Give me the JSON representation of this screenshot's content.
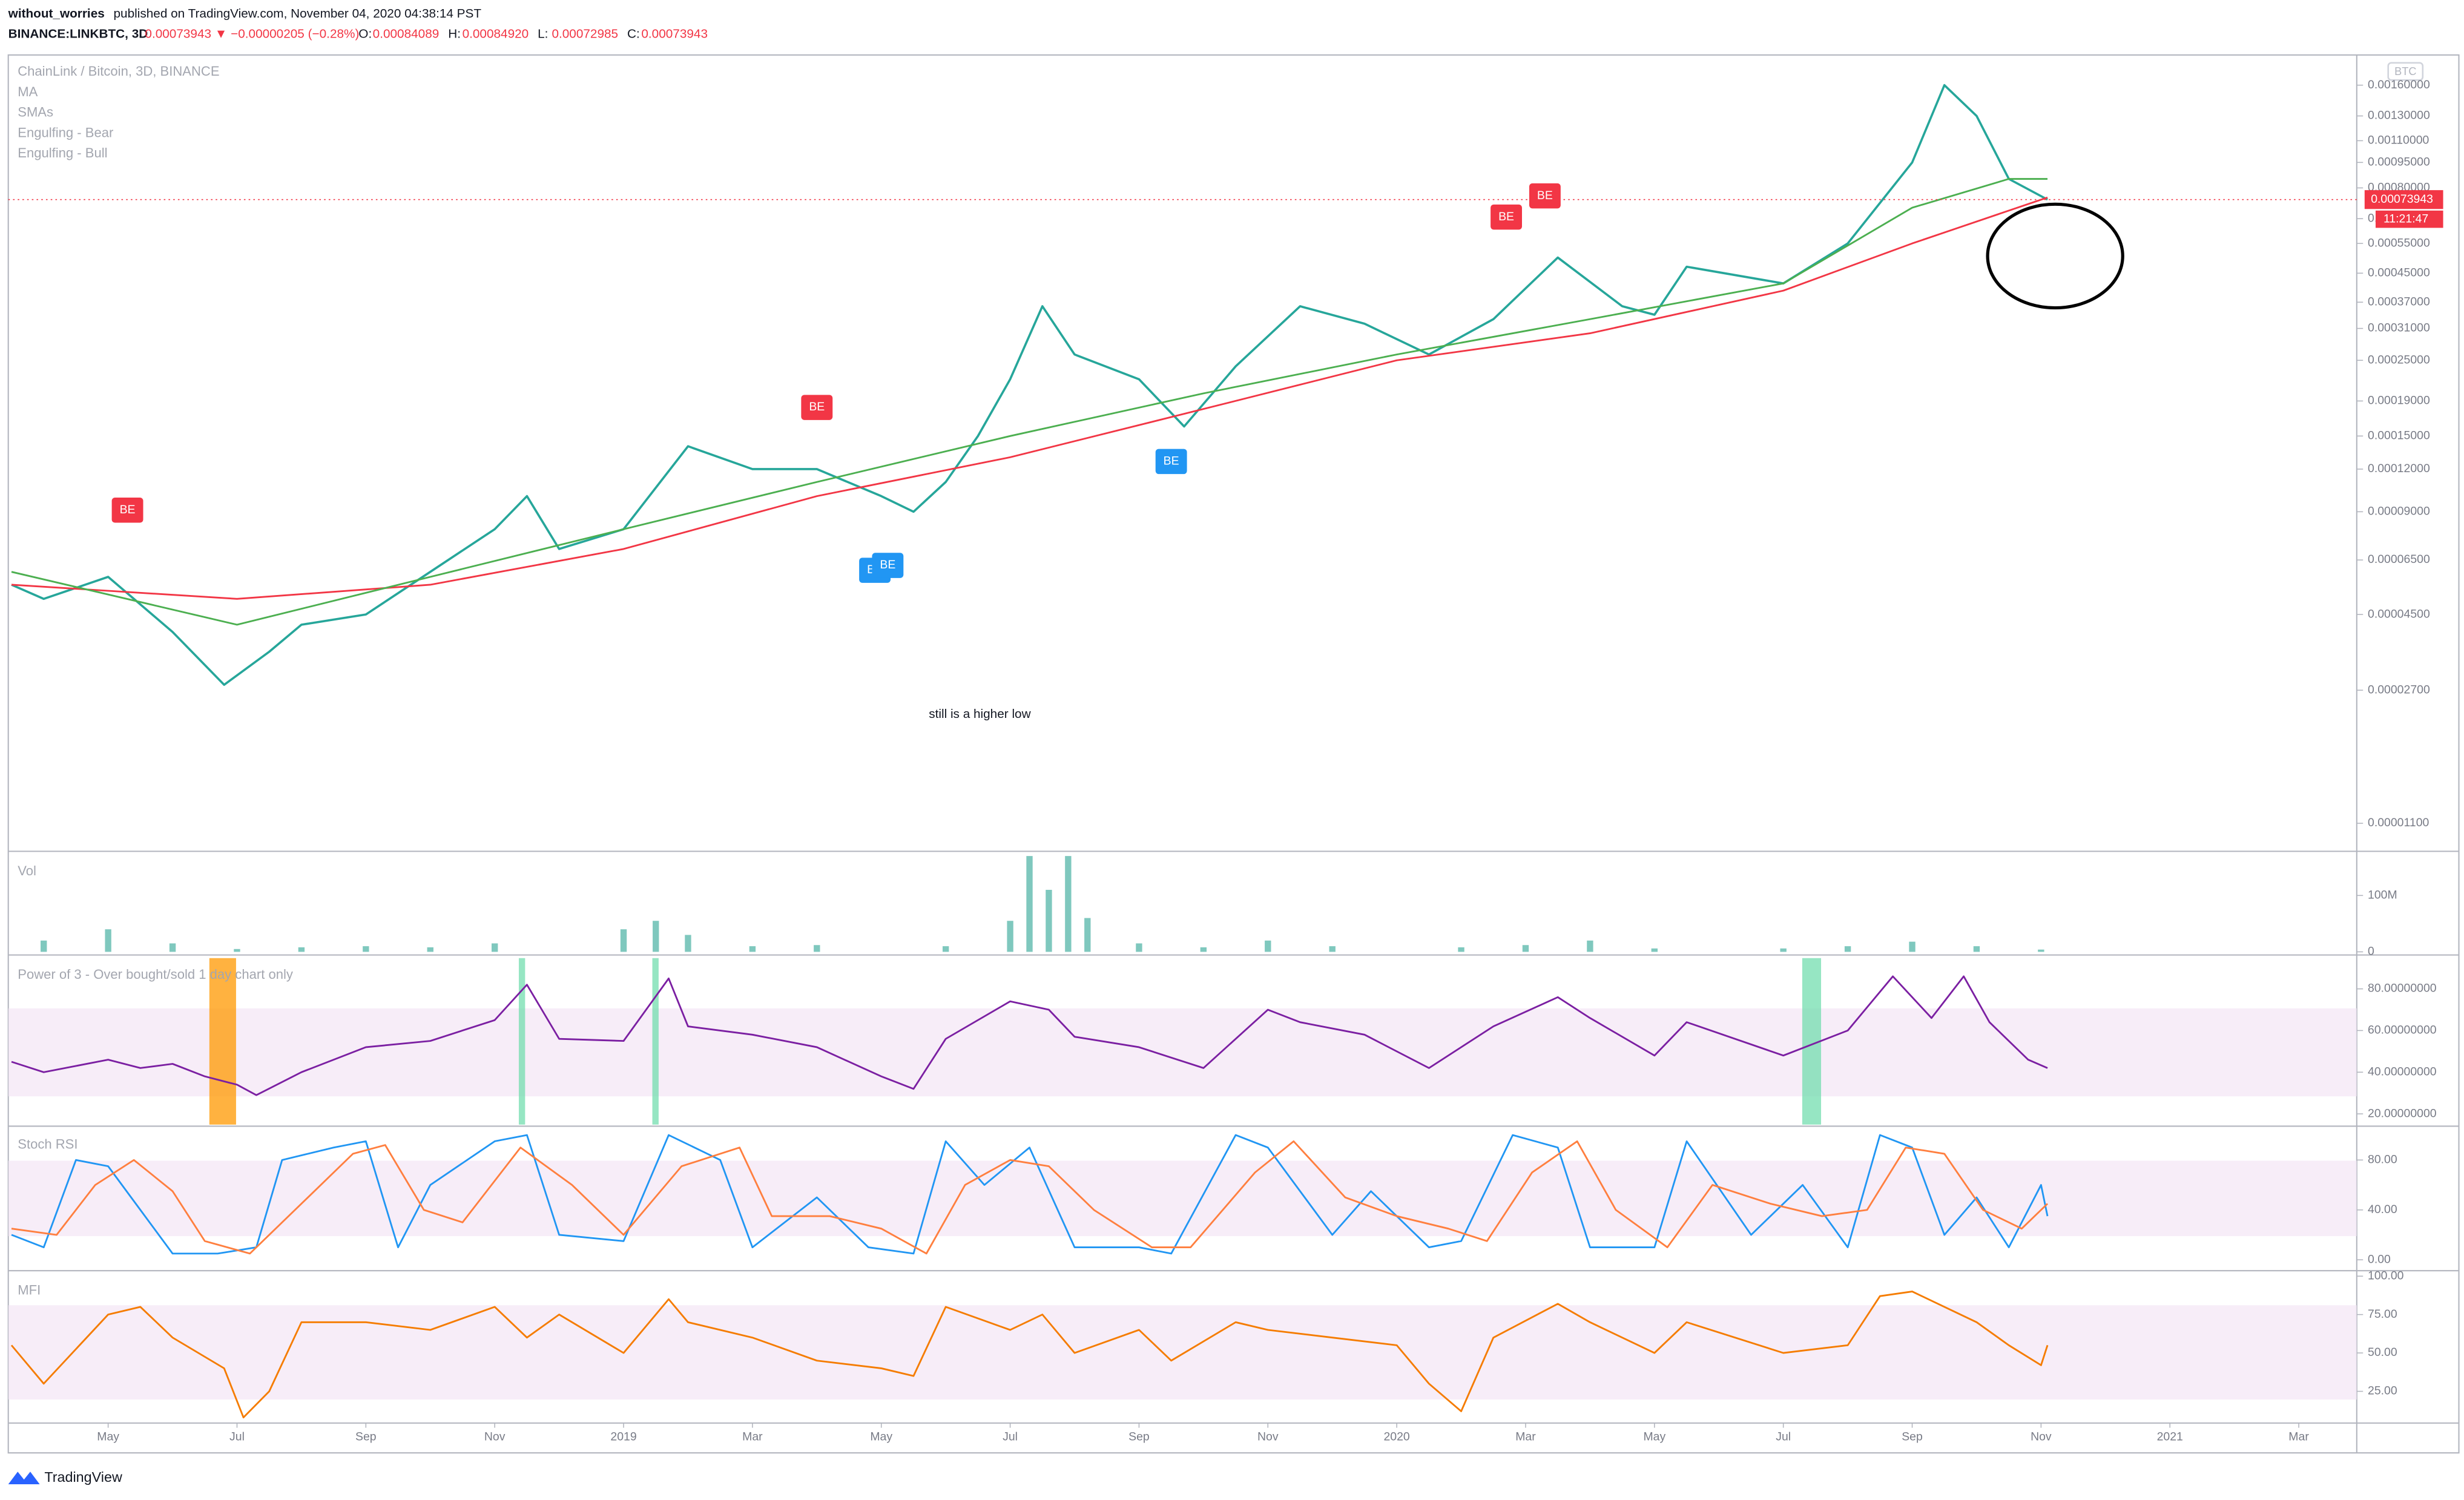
{
  "header": {
    "publisher": "without_worries",
    "published": "published on TradingView.com, November 04, 2020 04:38:14 PST",
    "symbol": "BINANCE:LINKBTC, 3D",
    "quote": "0.00073943 ▼ −0.00000205 (−0.28%)",
    "ohlc": [
      {
        "key": "O:",
        "value": "0.00084089"
      },
      {
        "key": "H:",
        "value": "0.00084920"
      },
      {
        "key": "L:",
        "value": "0.00072985"
      },
      {
        "key": "C:",
        "value": "0.00073943"
      }
    ]
  },
  "legend": [
    "ChainLink / Bitcoin, 3D, BINANCE",
    "MA",
    "SMAs",
    "Engulfing - Bear",
    "Engulfing - Bull"
  ],
  "annotation": "still is a higher low",
  "brand": "TradingView",
  "chart_data": [
    {
      "type": "line",
      "log_scale": true,
      "unit": "BTC",
      "xlim": [
        2.45,
        38.9
      ],
      "ylim": [
        9.5e-06,
        0.0019
      ],
      "yticks": [
        {
          "value": 0.0016,
          "label": "0.00160000"
        },
        {
          "value": 0.0013,
          "label": "0.00130000"
        },
        {
          "value": 0.0011,
          "label": "0.00110000"
        },
        {
          "value": 0.00095,
          "label": "0.00095000"
        },
        {
          "value": 0.0008,
          "label": "0.00080000"
        },
        {
          "value": 0.00065,
          "label": "0.00065000"
        },
        {
          "value": 0.00055,
          "label": "0.00055000"
        },
        {
          "value": 0.00045,
          "label": "0.00045000"
        },
        {
          "value": 0.00037,
          "label": "0.00037000"
        },
        {
          "value": 0.00031,
          "label": "0.00031000"
        },
        {
          "value": 0.00025,
          "label": "0.00025000"
        },
        {
          "value": 0.00019,
          "label": "0.00019000"
        },
        {
          "value": 0.00015,
          "label": "0.00015000"
        },
        {
          "value": 0.00012,
          "label": "0.00012000"
        },
        {
          "value": 9e-05,
          "label": "0.00009000"
        },
        {
          "value": 6.5e-05,
          "label": "0.00006500"
        },
        {
          "value": 4.5e-05,
          "label": "0.00004500"
        },
        {
          "value": 2.7e-05,
          "label": "0.00002700"
        },
        {
          "value": 1.1e-05,
          "label": "0.00001100"
        }
      ],
      "last_price": 0.00073943,
      "countdown": "11:21:47",
      "series": [
        {
          "name": "LINKBTC",
          "color": "#26a69a",
          "x": [
            2.5,
            3,
            4,
            5,
            5.8,
            6.5,
            7,
            8,
            9,
            10,
            10.5,
            11,
            12,
            13,
            14,
            15,
            16,
            16.5,
            17,
            17.5,
            18,
            18.5,
            19,
            20,
            20.7,
            21.5,
            22.5,
            23.5,
            24.5,
            25.5,
            26.5,
            27.5,
            28,
            28.5,
            30,
            31,
            32,
            32.5,
            33,
            33.5,
            34.1
          ],
          "values": [
            5.5e-05,
            5e-05,
            5.8e-05,
            4e-05,
            2.8e-05,
            3.5e-05,
            4.2e-05,
            4.5e-05,
            6e-05,
            8e-05,
            0.0001,
            7e-05,
            8e-05,
            0.00014,
            0.00012,
            0.00012,
            0.0001,
            9e-05,
            0.00011,
            0.00015,
            0.00022,
            0.00036,
            0.00026,
            0.00022,
            0.00016,
            0.00024,
            0.00036,
            0.00032,
            0.00026,
            0.00033,
            0.0005,
            0.00036,
            0.00034,
            0.00047,
            0.00042,
            0.00055,
            0.00095,
            0.0016,
            0.0013,
            0.00085,
            0.00073943
          ]
        },
        {
          "name": "SMA slow",
          "color": "#f23645",
          "x": [
            2.5,
            6,
            9,
            12,
            15,
            18,
            21,
            24,
            27,
            30,
            32,
            34.1
          ],
          "values": [
            5.5e-05,
            5e-05,
            5.5e-05,
            7e-05,
            0.0001,
            0.00013,
            0.00018,
            0.00025,
            0.0003,
            0.0004,
            0.00055,
            0.00075
          ]
        },
        {
          "name": "SMA mid",
          "color": "#4caf50",
          "x": [
            2.5,
            6,
            9,
            12,
            15,
            18,
            21,
            24,
            27,
            30,
            32,
            33.5,
            34.1
          ],
          "values": [
            6e-05,
            4.2e-05,
            5.8e-05,
            8e-05,
            0.00011,
            0.00015,
            0.0002,
            0.00026,
            0.00033,
            0.00042,
            0.0007,
            0.00085,
            0.00085
          ]
        }
      ],
      "markers": [
        {
          "label": "BE",
          "color": "#f23645",
          "x": 4.3,
          "y": 9e-05
        },
        {
          "label": "BE",
          "color": "#f23645",
          "x": 15.0,
          "y": 0.00018
        },
        {
          "label": "BE",
          "color": "#f23645",
          "x": 25.7,
          "y": 0.00065
        },
        {
          "label": "BE",
          "color": "#f23645",
          "x": 26.3,
          "y": 0.00075
        },
        {
          "label": "BE",
          "color": "#2196f3",
          "x": 15.9,
          "y": 6e-05
        },
        {
          "label": "BE",
          "color": "#2196f3",
          "x": 16.1,
          "y": 6.2e-05
        },
        {
          "label": "BE",
          "color": "#2196f3",
          "x": 20.5,
          "y": 0.000125
        }
      ]
    },
    {
      "type": "bar",
      "title": "Vol",
      "xlim": [
        2.45,
        38.9
      ],
      "ylim": [
        0,
        170000000
      ],
      "yticks": [
        {
          "value": 100000000,
          "label": "100M"
        },
        0
      ],
      "series": [
        {
          "name": "Volume",
          "color": "#7fc8be",
          "x": [
            3,
            4,
            5,
            6,
            7,
            8,
            9,
            10,
            12,
            12.5,
            13,
            14,
            15,
            17,
            18,
            18.3,
            18.6,
            18.9,
            19.2,
            20,
            21,
            22,
            23,
            25,
            26,
            27,
            28,
            30,
            31,
            32,
            33,
            34
          ],
          "values": [
            20000000,
            40000000,
            15000000,
            5000000,
            8000000,
            10000000,
            8000000,
            15000000,
            40000000,
            55000000,
            30000000,
            10000000,
            12000000,
            10000000,
            55000000,
            170000000,
            110000000,
            170000000,
            60000000,
            15000000,
            8000000,
            20000000,
            10000000,
            8000000,
            12000000,
            20000000,
            6000000,
            6000000,
            10000000,
            18000000,
            10000000,
            4000000
          ]
        }
      ]
    },
    {
      "type": "line",
      "title": "Power of 3 - Over bought/sold 1 day chart only",
      "xlim": [
        2.45,
        38.9
      ],
      "ylim": [
        15.6,
        94
      ],
      "yticks": [
        {
          "value": 80,
          "label": "80.00000000"
        },
        {
          "value": 60,
          "label": "60.00000000"
        },
        {
          "value": 40,
          "label": "40.00000000"
        },
        {
          "value": 20,
          "label": "20.00000000"
        }
      ],
      "series": [
        {
          "name": "Power of 3",
          "color": "#7b1fa2",
          "x": [
            2.5,
            3,
            4,
            4.5,
            5,
            5.5,
            6,
            6.3,
            7,
            8,
            9,
            10,
            10.5,
            11,
            12,
            12.7,
            13,
            14,
            15,
            16,
            16.5,
            17,
            18,
            18.6,
            19,
            20,
            21,
            22,
            22.5,
            23.5,
            24.5,
            25.5,
            26.5,
            27,
            28,
            28.5,
            30,
            31,
            31.7,
            32.3,
            32.8,
            33.2,
            33.8,
            34.1
          ],
          "values": [
            45,
            40,
            46,
            42,
            44,
            38,
            34,
            29,
            40,
            52,
            55,
            65,
            82,
            56,
            55,
            85,
            62,
            58,
            52,
            38,
            32,
            56,
            74,
            70,
            57,
            52,
            42,
            70,
            64,
            58,
            42,
            62,
            76,
            66,
            48,
            64,
            48,
            60,
            86,
            66,
            86,
            64,
            46,
            42
          ]
        }
      ]
    },
    {
      "type": "line",
      "title": "Stoch RSI",
      "xlim": [
        2.45,
        38.9
      ],
      "ylim": [
        -6.2,
        104.6
      ],
      "yticks": [
        {
          "value": 80,
          "label": "80.00"
        },
        {
          "value": 40,
          "label": "40.00"
        },
        {
          "value": 0,
          "label": "0.00"
        }
      ],
      "series": [
        {
          "name": "K",
          "color": "#2196f3",
          "x": [
            2.5,
            3,
            3.5,
            4,
            4.5,
            5,
            5.7,
            6.3,
            6.7,
            7.5,
            8,
            8.5,
            9,
            10,
            10.5,
            11,
            12,
            12.7,
            13.5,
            14,
            15,
            15.8,
            16.5,
            17,
            17.6,
            18.3,
            19,
            20,
            20.5,
            21.5,
            22,
            23,
            23.6,
            24.5,
            25,
            25.8,
            26.5,
            27,
            28,
            28.5,
            29.5,
            30.3,
            31,
            31.5,
            32,
            32.5,
            33,
            33.5,
            34,
            34.1
          ],
          "values": [
            20,
            10,
            80,
            75,
            40,
            5,
            5,
            10,
            80,
            90,
            95,
            10,
            60,
            95,
            100,
            20,
            15,
            100,
            80,
            10,
            50,
            10,
            5,
            95,
            60,
            90,
            10,
            10,
            5,
            100,
            90,
            20,
            55,
            10,
            15,
            100,
            90,
            10,
            10,
            95,
            20,
            60,
            10,
            100,
            90,
            20,
            50,
            10,
            60,
            35
          ]
        },
        {
          "name": "D",
          "color": "#ff7f3f",
          "x": [
            2.5,
            3.2,
            3.8,
            4.4,
            5,
            5.5,
            6.2,
            6.9,
            7.8,
            8.3,
            8.9,
            9.5,
            10.4,
            11.2,
            12,
            12.9,
            13.8,
            14.3,
            15.2,
            16,
            16.7,
            17.3,
            18,
            18.6,
            19.3,
            20.2,
            20.8,
            21.8,
            22.4,
            23.2,
            24,
            24.8,
            25.4,
            26.1,
            26.8,
            27.4,
            28.2,
            28.9,
            29.8,
            30.6,
            31.3,
            31.9,
            32.5,
            33.1,
            33.7,
            34.1
          ],
          "values": [
            25,
            20,
            60,
            80,
            55,
            15,
            5,
            40,
            85,
            92,
            40,
            30,
            90,
            60,
            20,
            75,
            90,
            35,
            35,
            25,
            5,
            60,
            80,
            75,
            40,
            10,
            10,
            70,
            95,
            50,
            35,
            25,
            15,
            70,
            95,
            40,
            10,
            60,
            45,
            35,
            40,
            90,
            85,
            40,
            25,
            45
          ]
        }
      ]
    },
    {
      "type": "line",
      "title": "MFI",
      "xlim": [
        2.45,
        38.9
      ],
      "ylim": [
        6.4,
        100.5
      ],
      "yticks": [
        {
          "value": 100,
          "label": "100.00"
        },
        {
          "value": 75,
          "label": "75.00"
        },
        {
          "value": 50,
          "label": "50.00"
        },
        {
          "value": 25,
          "label": "25.00"
        }
      ],
      "xticks": [
        {
          "value": 4,
          "label": "May"
        },
        {
          "value": 6,
          "label": "Jul"
        },
        {
          "value": 8,
          "label": "Sep"
        },
        {
          "value": 10,
          "label": "Nov"
        },
        {
          "value": 12,
          "label": "2019"
        },
        {
          "value": 14,
          "label": "Mar"
        },
        {
          "value": 16,
          "label": "May"
        },
        {
          "value": 18,
          "label": "Jul"
        },
        {
          "value": 20,
          "label": "Sep"
        },
        {
          "value": 22,
          "label": "Nov"
        },
        {
          "value": 24,
          "label": "2020"
        },
        {
          "value": 26,
          "label": "Mar"
        },
        {
          "value": 28,
          "label": "May"
        },
        {
          "value": 30,
          "label": "Jul"
        },
        {
          "value": 32,
          "label": "Sep"
        },
        {
          "value": 34,
          "label": "Nov"
        },
        {
          "value": 36,
          "label": "2021"
        },
        {
          "value": 38,
          "label": "Mar"
        }
      ],
      "series": [
        {
          "name": "MFI",
          "color": "#f57c00",
          "x": [
            2.5,
            3,
            4,
            4.5,
            5,
            5.8,
            6.1,
            6.5,
            7,
            8,
            9,
            10,
            10.5,
            11,
            12,
            12.7,
            13,
            14,
            15,
            16,
            16.5,
            17,
            18,
            18.5,
            19,
            20,
            20.5,
            21.5,
            22,
            23,
            24,
            24.5,
            25,
            25.5,
            26.5,
            27,
            28,
            28.5,
            30,
            31,
            31.5,
            32,
            33,
            33.5,
            34,
            34.1
          ],
          "values": [
            55,
            30,
            75,
            80,
            60,
            40,
            8,
            25,
            70,
            70,
            65,
            80,
            60,
            75,
            50,
            85,
            70,
            60,
            45,
            40,
            35,
            80,
            65,
            75,
            50,
            65,
            45,
            70,
            65,
            60,
            55,
            30,
            12,
            60,
            82,
            70,
            50,
            70,
            50,
            55,
            87,
            90,
            70,
            55,
            42,
            55
          ]
        }
      ]
    }
  ]
}
